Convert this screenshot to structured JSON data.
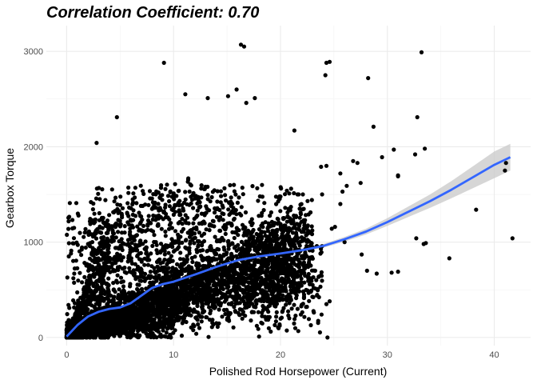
{
  "chart_data": {
    "type": "scatter",
    "title": "Correlation Coefficient: 0.70",
    "xlabel": "Polished Rod Horsepower (Current)",
    "ylabel": "Gearbox Torque",
    "xlim": [
      -1.9,
      43.4
    ],
    "ylim": [
      -85,
      3270
    ],
    "x_ticks": [
      0,
      10,
      20,
      30,
      40
    ],
    "y_ticks": [
      0,
      1000,
      2000,
      3000
    ],
    "grid": true,
    "point_color": "#000000",
    "smooth_color": "#3366ff",
    "band_color": "#c8c8c8",
    "smooth": {
      "x": [
        0,
        1,
        2,
        3,
        4,
        5,
        6,
        7,
        8,
        9,
        10,
        12,
        14,
        16,
        18,
        20,
        22,
        24,
        26,
        28,
        30,
        32,
        34,
        36,
        38,
        40,
        41.5
      ],
      "y": [
        10,
        130,
        220,
        270,
        300,
        315,
        360,
        440,
        520,
        560,
        585,
        660,
        740,
        810,
        850,
        880,
        915,
        960,
        1030,
        1110,
        1210,
        1320,
        1430,
        1550,
        1680,
        1810,
        1890
      ],
      "lower": [
        -10,
        110,
        205,
        255,
        285,
        300,
        345,
        425,
        505,
        545,
        570,
        645,
        727,
        797,
        836,
        865,
        898,
        940,
        1005,
        1080,
        1170,
        1265,
        1360,
        1460,
        1565,
        1670,
        1750
      ],
      "upper": [
        30,
        150,
        235,
        285,
        315,
        330,
        375,
        455,
        535,
        575,
        600,
        675,
        753,
        823,
        864,
        895,
        932,
        980,
        1055,
        1140,
        1250,
        1375,
        1500,
        1640,
        1795,
        1950,
        2030
      ]
    },
    "outliers": [
      [
        9.1,
        2880
      ],
      [
        11.1,
        2550
      ],
      [
        13.2,
        2510
      ],
      [
        15.1,
        2530
      ],
      [
        15.9,
        2600
      ],
      [
        16.3,
        3070
      ],
      [
        16.6,
        3050
      ],
      [
        16.8,
        2460
      ],
      [
        17.6,
        2510
      ],
      [
        4.7,
        2310
      ],
      [
        2.8,
        2040
      ],
      [
        21.3,
        2170
      ],
      [
        24.2,
        2750
      ],
      [
        24.3,
        2880
      ],
      [
        24.6,
        2890
      ],
      [
        28.2,
        2720
      ],
      [
        28.7,
        2210
      ],
      [
        32.8,
        2310
      ],
      [
        33.2,
        2990
      ],
      [
        29.5,
        1890
      ],
      [
        30.6,
        1970
      ],
      [
        32.6,
        1920
      ],
      [
        33.5,
        1980
      ],
      [
        26.8,
        1850
      ],
      [
        27.2,
        1830
      ],
      [
        24.3,
        1800
      ],
      [
        23.8,
        1790
      ],
      [
        25.6,
        1720
      ],
      [
        31.0,
        1690
      ],
      [
        31.0,
        1700
      ],
      [
        41.1,
        1830
      ],
      [
        41.0,
        1750
      ],
      [
        41.7,
        1040
      ],
      [
        38.3,
        1340
      ],
      [
        35.8,
        830
      ],
      [
        33.6,
        990
      ],
      [
        33.4,
        980
      ],
      [
        32.7,
        1040
      ],
      [
        29.0,
        670
      ],
      [
        30.4,
        680
      ],
      [
        31.0,
        690
      ],
      [
        24.6,
        380
      ],
      [
        24.4,
        0
      ],
      [
        18.0,
        10
      ],
      [
        26.2,
        1590
      ],
      [
        25.8,
        1530
      ],
      [
        27.6,
        870
      ],
      [
        28.1,
        700
      ],
      [
        0.3,
        1410
      ],
      [
        0.9,
        1410
      ],
      [
        0.4,
        880
      ],
      [
        0.2,
        850
      ],
      [
        1.7,
        1100
      ],
      [
        2.0,
        1100
      ],
      [
        2.4,
        1000
      ],
      [
        25.6,
        1400
      ],
      [
        25.1,
        1160
      ],
      [
        24.8,
        1140
      ],
      [
        22.3,
        1230
      ],
      [
        23.0,
        910
      ],
      [
        23.6,
        640
      ],
      [
        24.3,
        350
      ],
      [
        19.8,
        420
      ],
      [
        21.6,
        300
      ],
      [
        26.0,
        1000
      ],
      [
        27.5,
        1620
      ],
      [
        23.9,
        1500
      ],
      [
        22.5,
        1160
      ],
      [
        20.6,
        1540
      ],
      [
        21.0,
        1560
      ]
    ]
  }
}
